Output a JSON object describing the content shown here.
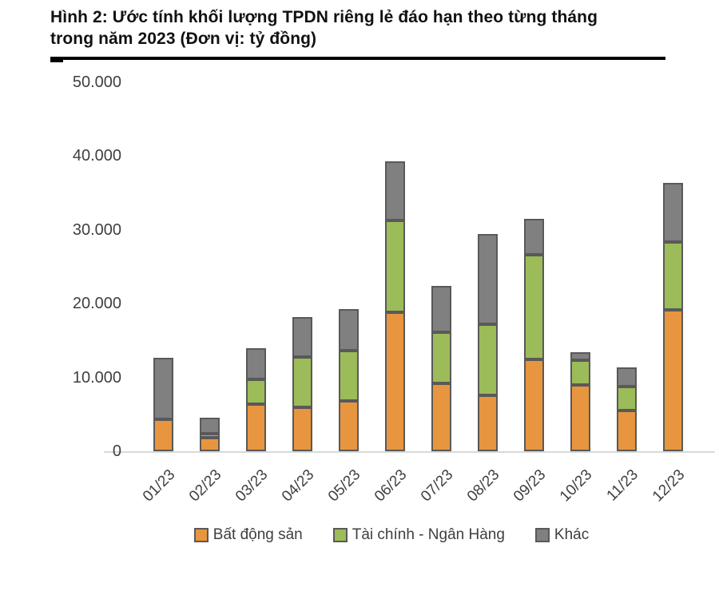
{
  "figure_title": "Hình 2: Ước tính khối lượng TPDN riêng lẻ đáo hạn theo từng tháng trong năm 2023 (Đơn vị: tỷ đồng)",
  "chart_data": {
    "type": "bar",
    "stacked": true,
    "title": "Hình 2: Ước tính khối lượng TPDN riêng lẻ đáo hạn theo từng tháng trong năm 2023",
    "unit_label": "tỷ đồng",
    "categories": [
      "01/23",
      "02/23",
      "03/23",
      "04/23",
      "05/23",
      "06/23",
      "07/23",
      "08/23",
      "09/23",
      "10/23",
      "11/23",
      "12/23"
    ],
    "series": [
      {
        "name": "Bất động sản",
        "color": "#E8953F",
        "values": [
          4300,
          1800,
          6400,
          5900,
          6800,
          18800,
          9200,
          7600,
          12400,
          9000,
          5500,
          19100
        ]
      },
      {
        "name": "Tài chính - Ngân Hàng",
        "color": "#9CBB59",
        "values": [
          0,
          600,
          3300,
          6900,
          6800,
          12400,
          6900,
          9600,
          14200,
          3300,
          3300,
          9200
        ]
      },
      {
        "name": "Khác",
        "color": "#808080",
        "values": [
          8400,
          2100,
          4300,
          5400,
          5600,
          8000,
          6300,
          12200,
          4900,
          1100,
          2500,
          8000
        ]
      }
    ],
    "totals": [
      12700,
      4500,
      14000,
      18200,
      19200,
      39200,
      22400,
      29400,
      31500,
      13400,
      11300,
      36300
    ],
    "y_axis": {
      "ticks": [
        "0",
        "10.000",
        "20.000",
        "30.000",
        "40.000",
        "50.000"
      ],
      "min": 0,
      "max": 50000
    },
    "legend_position": "bottom",
    "grid": false,
    "colors": {
      "segment_border": "#595959",
      "axis_line": "#D9D9D9",
      "axis_text": "#3F3F3F",
      "title_text": "#111111",
      "title_rule": "#000000"
    }
  }
}
